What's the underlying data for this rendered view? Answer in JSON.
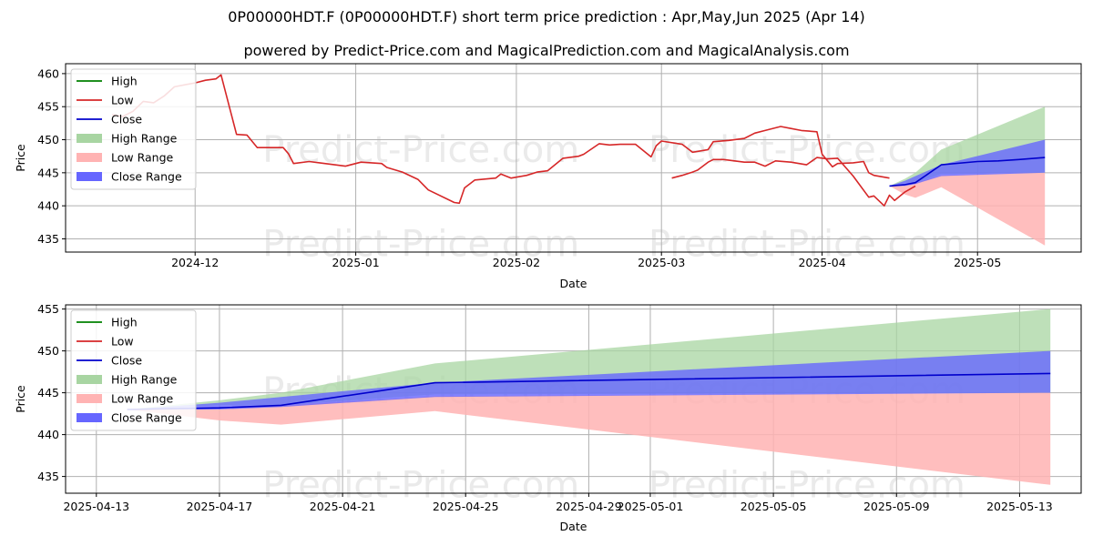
{
  "title": "0P00000HDT.F (0P00000HDT.F) short term price prediction : Apr,May,Jun 2025 (Apr 14)",
  "subtitle": "powered by Predict-Price.com and MagicalPrediction.com and MagicalAnalysis.com",
  "watermark": "Predict-Price.com",
  "colors": {
    "high": "#008000",
    "low": "#d62728",
    "close": "#0000cc",
    "high_range": "#a8d5a2",
    "low_range": "#ffb3b3",
    "close_range": "#6666ff"
  },
  "chart_data": [
    {
      "type": "line",
      "xlabel": "Date",
      "ylabel": "Price",
      "xlim": [
        "2024-11-06",
        "2025-05-21"
      ],
      "ylim": [
        433,
        461.5
      ],
      "xticks": [
        "2024-12-01",
        "2025-01-01",
        "2025-02-01",
        "2025-03-01",
        "2025-04-01",
        "2025-05-01"
      ],
      "xtick_labels": [
        "2024-12",
        "2025-01",
        "2025-02",
        "2025-03",
        "2025-04",
        "2025-05"
      ],
      "yticks": [
        435,
        440,
        445,
        450,
        455,
        460
      ],
      "grid": true,
      "legend_position": "top-left",
      "legend": [
        "High",
        "Low",
        "Close",
        "High Range",
        "Low Range",
        "Close Range"
      ],
      "series": [
        {
          "name": "Low",
          "points": [
            [
              "2024-11-15",
              453.8
            ],
            [
              "2024-11-17",
              453.5
            ],
            [
              "2024-11-19",
              454.3
            ],
            [
              "2024-11-21",
              455.8
            ],
            [
              "2024-11-23",
              455.6
            ],
            [
              "2024-11-25",
              456.6
            ],
            [
              "2024-11-27",
              458.0
            ],
            [
              "2024-11-29",
              458.3
            ],
            [
              "2024-12-01",
              458.6
            ],
            [
              "2024-12-03",
              459.0
            ],
            [
              "2024-12-05",
              459.2
            ],
            [
              "2024-12-06",
              459.8
            ],
            [
              "2024-12-09",
              450.8
            ],
            [
              "2024-12-11",
              450.7
            ],
            [
              "2024-12-13",
              448.8
            ],
            [
              "2024-12-16",
              448.8
            ],
            [
              "2024-12-18",
              448.8
            ],
            [
              "2024-12-19",
              447.9
            ],
            [
              "2024-12-20",
              446.4
            ],
            [
              "2024-12-23",
              446.7
            ],
            [
              "2024-12-25",
              446.5
            ],
            [
              "2024-12-30",
              446.0
            ],
            [
              "2025-01-02",
              446.6
            ],
            [
              "2025-01-06",
              446.4
            ],
            [
              "2025-01-07",
              445.8
            ],
            [
              "2025-01-10",
              445.1
            ],
            [
              "2025-01-13",
              444.0
            ],
            [
              "2025-01-15",
              442.4
            ],
            [
              "2025-01-20",
              440.5
            ],
            [
              "2025-01-21",
              440.4
            ],
            [
              "2025-01-22",
              442.7
            ],
            [
              "2025-01-24",
              443.9
            ],
            [
              "2025-01-28",
              444.2
            ],
            [
              "2025-01-29",
              444.8
            ],
            [
              "2025-01-31",
              444.2
            ],
            [
              "2025-02-03",
              444.6
            ],
            [
              "2025-02-05",
              445.1
            ],
            [
              "2025-02-07",
              445.3
            ],
            [
              "2025-02-10",
              447.2
            ],
            [
              "2025-02-13",
              447.5
            ],
            [
              "2025-02-14",
              447.8
            ],
            [
              "2025-02-17",
              449.4
            ],
            [
              "2025-02-19",
              449.2
            ],
            [
              "2025-02-21",
              449.3
            ],
            [
              "2025-02-24",
              449.3
            ],
            [
              "2025-02-27",
              447.4
            ],
            [
              "2025-02-28",
              449.1
            ],
            [
              "2025-03-01",
              449.8
            ],
            [
              "2025-03-05",
              449.3
            ],
            [
              "2025-03-07",
              448.1
            ],
            [
              "2025-03-10",
              448.5
            ],
            [
              "2025-03-11",
              449.7
            ],
            [
              "2025-03-14",
              449.9
            ],
            [
              "2025-03-17",
              450.2
            ],
            [
              "2025-03-19",
              451.0
            ],
            [
              "2025-03-21",
              451.4
            ],
            [
              "2025-03-24",
              452.0
            ],
            [
              "2025-03-26",
              451.7
            ],
            [
              "2025-03-28",
              451.4
            ],
            [
              "2025-03-31",
              451.2
            ],
            [
              "2025-04-01",
              447.8
            ],
            [
              "2025-04-03",
              445.9
            ],
            [
              "2025-04-04",
              446.4
            ],
            [
              "2025-04-07",
              446.5
            ],
            [
              "2025-04-09",
              446.7
            ],
            [
              "2025-04-10",
              445.0
            ],
            [
              "2025-04-11",
              444.6
            ],
            [
              "2025-04-14",
              444.2
            ]
          ]
        },
        {
          "name": "Low",
          "points": [
            [
              "2025-03-03",
              444.2
            ],
            [
              "2025-03-05",
              444.6
            ],
            [
              "2025-03-07",
              445.1
            ],
            [
              "2025-03-08",
              445.4
            ],
            [
              "2025-03-10",
              446.6
            ],
            [
              "2025-03-11",
              447.0
            ],
            [
              "2025-03-13",
              447.0
            ],
            [
              "2025-03-17",
              446.6
            ],
            [
              "2025-03-19",
              446.6
            ],
            [
              "2025-03-21",
              446.0
            ],
            [
              "2025-03-23",
              446.8
            ],
            [
              "2025-03-26",
              446.6
            ],
            [
              "2025-03-29",
              446.2
            ],
            [
              "2025-03-31",
              447.3
            ],
            [
              "2025-04-02",
              447.1
            ],
            [
              "2025-04-04",
              447.2
            ],
            [
              "2025-04-07",
              444.5
            ],
            [
              "2025-04-10",
              441.3
            ],
            [
              "2025-04-11",
              441.5
            ],
            [
              "2025-04-13",
              440.0
            ],
            [
              "2025-04-14",
              441.6
            ],
            [
              "2025-04-15",
              440.8
            ],
            [
              "2025-04-17",
              442.1
            ],
            [
              "2025-04-19",
              443.0
            ]
          ]
        },
        {
          "name": "Close",
          "points": [
            [
              "2025-04-14",
              443.0
            ],
            [
              "2025-04-17",
              443.2
            ],
            [
              "2025-04-19",
              443.5
            ],
            [
              "2025-04-24",
              446.2
            ],
            [
              "2025-05-01",
              446.7
            ],
            [
              "2025-05-05",
              446.8
            ],
            [
              "2025-05-09",
              447.0
            ],
            [
              "2025-05-14",
              447.3
            ]
          ]
        }
      ]
    },
    {
      "type": "line",
      "xlabel": "Date",
      "ylabel": "Price",
      "xlim": [
        "2025-04-12",
        "2025-05-15"
      ],
      "ylim": [
        433,
        455.5
      ],
      "xticks": [
        "2025-04-13",
        "2025-04-17",
        "2025-04-21",
        "2025-04-25",
        "2025-04-29",
        "2025-05-01",
        "2025-05-05",
        "2025-05-09",
        "2025-05-13"
      ],
      "xtick_labels": [
        "2025-04-13",
        "2025-04-17",
        "2025-04-21",
        "2025-04-25",
        "2025-04-29",
        "2025-05-01",
        "2025-05-05",
        "2025-05-09",
        "2025-05-13"
      ],
      "yticks": [
        435,
        440,
        445,
        450,
        455
      ],
      "grid": true,
      "legend_position": "top-left",
      "legend": [
        "High",
        "Low",
        "Close",
        "High Range",
        "Low Range",
        "Close Range"
      ],
      "dates": [
        "2025-04-14",
        "2025-04-17",
        "2025-04-19",
        "2025-04-24",
        "2025-05-14"
      ],
      "high_range": {
        "lower": [
          443.0,
          443.5,
          443.5,
          444.8,
          445.0
        ],
        "upper": [
          443.0,
          444.1,
          445.0,
          448.5,
          455.0
        ]
      },
      "low_range": {
        "lower": [
          443.0,
          441.7,
          441.2,
          442.8,
          434.0
        ],
        "upper": [
          443.0,
          443.0,
          443.5,
          444.6,
          445.0
        ]
      },
      "close_range": {
        "lower": [
          443.0,
          443.0,
          443.3,
          444.5,
          445.0
        ],
        "upper": [
          443.0,
          443.8,
          444.5,
          446.2,
          450.0
        ]
      },
      "series": [
        {
          "name": "Close",
          "x": [
            "2025-04-14",
            "2025-04-17",
            "2025-04-19",
            "2025-04-24",
            "2025-05-14"
          ],
          "y": [
            443.0,
            443.2,
            443.5,
            446.2,
            447.3
          ]
        }
      ]
    }
  ]
}
